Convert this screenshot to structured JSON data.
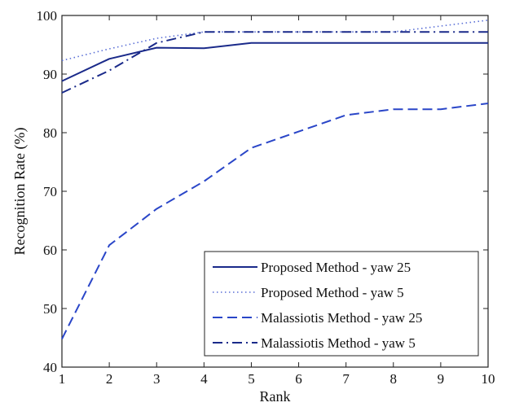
{
  "chart_data": {
    "type": "line",
    "title": "",
    "xlabel": "Rank",
    "ylabel": "Recognition Rate (%)",
    "xlim": [
      1,
      10
    ],
    "ylim": [
      40,
      100
    ],
    "x_ticks": [
      "1",
      "2",
      "3",
      "4",
      "5",
      "6",
      "7",
      "8",
      "9",
      "10"
    ],
    "y_ticks": [
      "40",
      "50",
      "60",
      "70",
      "80",
      "90",
      "100"
    ],
    "grid": false,
    "legend_position": "bottom-right",
    "x": [
      1,
      2,
      3,
      4,
      5,
      6,
      7,
      8,
      9,
      10
    ],
    "series": [
      {
        "name": "Proposed Method - yaw 25",
        "style": "solid",
        "color": "#1a2a8a",
        "values": [
          88.8,
          92.6,
          94.5,
          94.4,
          95.3,
          95.3,
          95.3,
          95.3,
          95.3,
          95.3
        ]
      },
      {
        "name": "Proposed Method - yaw 5",
        "style": "dotted",
        "color": "#5a6fd6",
        "values": [
          92.3,
          94.3,
          96.1,
          97.2,
          97.2,
          97.2,
          97.2,
          97.2,
          98.2,
          99.2
        ]
      },
      {
        "name": "Malassiotis Method - yaw 25",
        "style": "dashed",
        "color": "#2a46c8",
        "values": [
          44.8,
          60.8,
          67.0,
          71.7,
          77.4,
          80.2,
          83.0,
          84.0,
          84.0,
          85.0
        ]
      },
      {
        "name": "Malassiotis Method - yaw 5",
        "style": "dashdot",
        "color": "#1a2a8a",
        "values": [
          86.8,
          90.6,
          95.3,
          97.2,
          97.2,
          97.2,
          97.2,
          97.2,
          97.2,
          97.2
        ]
      }
    ]
  }
}
